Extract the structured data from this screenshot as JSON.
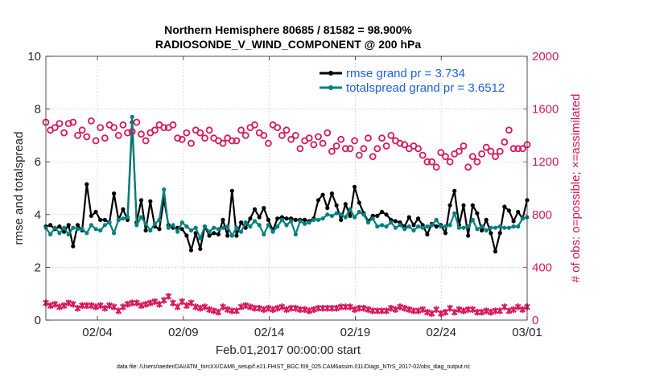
{
  "chart_data": {
    "type": "line",
    "title_line1": "Northern Hemisphere 80685 / 81582 = 98.900%",
    "title_line2": "RADIOSONDE_V_WIND_COMPONENT @ 200 hPa",
    "xlabel": "Feb.01,2017 00:00:00 start",
    "ylabel_left": "rmse and totalspread",
    "ylabel_right": "# of obs: o=possible; ×=assimilated",
    "footer": "data file: /Users/raeder/DAI/ATM_forcXX/CAM6_setup/f.e21.FHIST_BGC.f09_025.CAM6assim.011/Diags_NTrS_2017-02/obs_diag_output.nc",
    "x_tick_labels": [
      "02/04",
      "02/09",
      "02/14",
      "02/19",
      "02/24",
      "03/01"
    ],
    "x_tick_days": [
      3,
      8,
      13,
      18,
      23,
      28
    ],
    "xlim_days": [
      0,
      28
    ],
    "ylim_left": [
      0,
      10
    ],
    "yticks_left": [
      "0",
      "2",
      "4",
      "6",
      "8",
      "10"
    ],
    "ylim_right": [
      0,
      2000
    ],
    "yticks_right": [
      "0",
      "400",
      "800",
      "1200",
      "1600",
      "2000"
    ],
    "colors": {
      "rmse": "#000000",
      "spread": "#008080",
      "obs": "#d6185a"
    },
    "series": [
      {
        "name": "rmse grand pr = 3.734",
        "axis": "left",
        "values": [
          3.55,
          3.6,
          3.45,
          3.55,
          3.35,
          3.6,
          2.8,
          3.6,
          3.4,
          5.15,
          3.95,
          4.1,
          3.8,
          3.8,
          3.7,
          4.8,
          3.8,
          4.2,
          3.8,
          7.5,
          3.7,
          4.55,
          3.4,
          4.5,
          3.55,
          3.45,
          4.6,
          3.6,
          3.5,
          3.5,
          3.45,
          3.2,
          2.65,
          3.3,
          2.7,
          3.55,
          3.2,
          3.3,
          3.25,
          3.8,
          3.2,
          4.9,
          3.2,
          3.7,
          3.5,
          3.85,
          4.2,
          3.9,
          4.25,
          3.8,
          3.4,
          3.85,
          3.9,
          3.85,
          3.85,
          3.8,
          3.8,
          3.8,
          3.75,
          3.85,
          4.55,
          4.75,
          4.25,
          4.8,
          4.35,
          3.8,
          4.4,
          3.95,
          5.05,
          4.45,
          4.05,
          3.75,
          3.95,
          3.95,
          4.1,
          4.0,
          3.8,
          3.75,
          3.7,
          3.55,
          3.9,
          3.6,
          3.85,
          3.6,
          3.25,
          3.65,
          3.55,
          3.6,
          3.3,
          4.35,
          4.9,
          3.6,
          4.35,
          3.2,
          4.35,
          4.05,
          3.4,
          3.8,
          3.3,
          2.6,
          3.3,
          4.3,
          4.15,
          3.75,
          4.1,
          3.85,
          4.55
        ]
      },
      {
        "name": "totalspread grand pr = 3.6512",
        "axis": "left",
        "values": [
          3.5,
          3.25,
          3.5,
          3.3,
          3.5,
          3.25,
          3.5,
          3.45,
          3.45,
          3.3,
          3.6,
          3.45,
          3.4,
          3.6,
          3.7,
          3.3,
          3.8,
          3.85,
          3.9,
          7.7,
          3.6,
          3.9,
          3.65,
          3.4,
          3.65,
          3.8,
          4.95,
          3.5,
          3.6,
          3.35,
          3.7,
          3.55,
          3.4,
          3.5,
          3.1,
          3.55,
          3.35,
          3.5,
          3.45,
          3.5,
          3.55,
          3.2,
          3.5,
          3.35,
          3.7,
          3.55,
          3.75,
          3.6,
          3.25,
          3.6,
          3.35,
          3.55,
          3.8,
          3.6,
          3.75,
          3.25,
          3.75,
          3.65,
          3.7,
          3.8,
          3.8,
          3.85,
          4.0,
          3.95,
          4.05,
          4.0,
          3.9,
          4.2,
          3.9,
          4.1,
          4.0,
          3.7,
          3.85,
          3.55,
          3.6,
          3.55,
          3.7,
          3.5,
          3.6,
          3.45,
          3.55,
          3.4,
          3.55,
          3.5,
          3.55,
          3.6,
          3.8,
          3.55,
          3.55,
          3.6,
          4.05,
          3.5,
          3.5,
          3.55,
          3.8,
          3.45,
          3.55,
          3.4,
          3.5,
          3.5,
          3.55,
          3.5,
          3.5,
          3.55,
          3.55,
          3.85,
          3.9
        ]
      },
      {
        "name": "possible",
        "axis": "right",
        "marker": "o",
        "values": [
          1500,
          1440,
          1460,
          1490,
          1420,
          1490,
          1500,
          1400,
          1440,
          1390,
          1510,
          1360,
          1460,
          1380,
          1480,
          1460,
          1400,
          1480,
          1420,
          1430,
          1500,
          1410,
          1360,
          1420,
          1440,
          1480,
          1460,
          1460,
          1480,
          1380,
          1370,
          1420,
          1340,
          1440,
          1420,
          1380,
          1440,
          1380,
          1360,
          1340,
          1380,
          1360,
          1360,
          1440,
          1400,
          1460,
          1480,
          1420,
          1400,
          1340,
          1480,
          1460,
          1400,
          1440,
          1370,
          1400,
          1300,
          1360,
          1380,
          1330,
          1390,
          1340,
          1420,
          1280,
          1320,
          1370,
          1300,
          1300,
          1360,
          1250,
          1300,
          1380,
          1240,
          1300,
          1380,
          1320,
          1400,
          1360,
          1340,
          1330,
          1300,
          1320,
          1300,
          1250,
          1200,
          1200,
          1160,
          1270,
          1240,
          1200,
          1260,
          1280,
          1320,
          1160,
          1240,
          1200,
          1260,
          1310,
          1280,
          1240,
          1280,
          1350,
          1440,
          1300,
          1300,
          1300,
          1330
        ]
      },
      {
        "name": "assimilated",
        "axis": "right",
        "marker": "x",
        "values": [
          130,
          110,
          120,
          100,
          110,
          130,
          120,
          90,
          110,
          110,
          110,
          100,
          110,
          90,
          110,
          100,
          70,
          100,
          120,
          130,
          130,
          110,
          120,
          130,
          140,
          120,
          150,
          180,
          130,
          100,
          140,
          110,
          130,
          100,
          90,
          100,
          80,
          70,
          60,
          100,
          80,
          70,
          70,
          100,
          110,
          100,
          90,
          90,
          80,
          90,
          80,
          90,
          100,
          80,
          90,
          90,
          80,
          80,
          70,
          80,
          90,
          90,
          90,
          90,
          90,
          100,
          100,
          100,
          80,
          90,
          90,
          80,
          70,
          70,
          70,
          70,
          90,
          80,
          100,
          90,
          80,
          70,
          70,
          80,
          60,
          50,
          80,
          50,
          60,
          90,
          60,
          80,
          70,
          80,
          80,
          60,
          60,
          70,
          60,
          70,
          70,
          100,
          70,
          80,
          100,
          80,
          100
        ]
      }
    ],
    "legend": [
      "rmse grand pr = 3.734",
      "totalspread grand pr = 3.6512"
    ],
    "legend_position": "top-right"
  }
}
